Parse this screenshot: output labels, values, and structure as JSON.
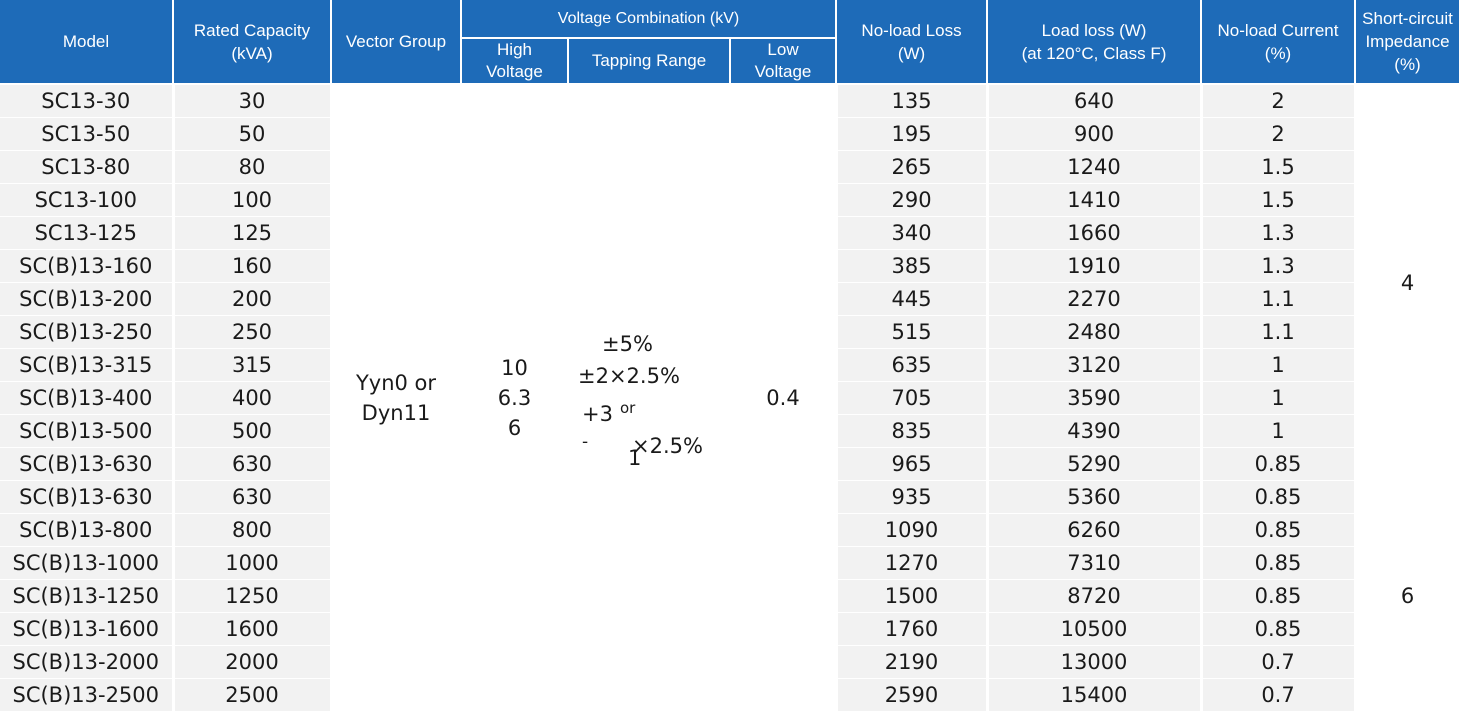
{
  "colors": {
    "header_bg": "#1e6bb8",
    "header_text": "#ffffff",
    "row_shade": "#f2f2f2"
  },
  "headers": {
    "model": "Model",
    "capacity_l1": "Rated Capacity",
    "capacity_l2": "(kVA)",
    "vector_group": "Vector Group",
    "voltage_combination": "Voltage Combination (kV)",
    "high_voltage_l1": "High",
    "high_voltage_l2": "Voltage",
    "tapping_range": "Tapping Range",
    "low_voltage_l1": "Low",
    "low_voltage_l2": "Voltage",
    "noload_loss_l1": "No-load Loss",
    "noload_loss_l2": "(W)",
    "load_loss_l1": "Load loss (W)",
    "load_loss_l2": "(at 120°C, Class F)",
    "noload_current_l1": "No-load Current",
    "noload_current_l2": "(%)",
    "impedance_l1": "Short-circuit",
    "impedance_l2": "Impedance",
    "impedance_l3": "(%)"
  },
  "merged": {
    "vector_group_l1": "Yyn0 or",
    "vector_group_l2": "Dyn11",
    "high_voltage_1": "10",
    "high_voltage_2": "6.3",
    "high_voltage_3": "6",
    "tapping_1": "±5%",
    "tapping_2": "±2×2.5%",
    "tapping_3": "+3",
    "tapping_or": "or",
    "tapping_minus": "-",
    "tapping_1b": "1",
    "tapping_x": "×2.5%",
    "low_voltage": "0.4",
    "impedance_small": "4",
    "impedance_large": "6"
  },
  "rows": [
    {
      "model": "SC13-30",
      "capacity": "30",
      "noload_loss": "135",
      "load_loss": "640",
      "noload_current": "2"
    },
    {
      "model": "SC13-50",
      "capacity": "50",
      "noload_loss": "195",
      "load_loss": "900",
      "noload_current": "2"
    },
    {
      "model": "SC13-80",
      "capacity": "80",
      "noload_loss": "265",
      "load_loss": "1240",
      "noload_current": "1.5"
    },
    {
      "model": "SC13-100",
      "capacity": "100",
      "noload_loss": "290",
      "load_loss": "1410",
      "noload_current": "1.5"
    },
    {
      "model": "SC13-125",
      "capacity": "125",
      "noload_loss": "340",
      "load_loss": "1660",
      "noload_current": "1.3"
    },
    {
      "model": "SC(B)13-160",
      "capacity": "160",
      "noload_loss": "385",
      "load_loss": "1910",
      "noload_current": "1.3"
    },
    {
      "model": "SC(B)13-200",
      "capacity": "200",
      "noload_loss": "445",
      "load_loss": "2270",
      "noload_current": "1.1"
    },
    {
      "model": "SC(B)13-250",
      "capacity": "250",
      "noload_loss": "515",
      "load_loss": "2480",
      "noload_current": "1.1"
    },
    {
      "model": "SC(B)13-315",
      "capacity": "315",
      "noload_loss": "635",
      "load_loss": "3120",
      "noload_current": "1"
    },
    {
      "model": "SC(B)13-400",
      "capacity": "400",
      "noload_loss": "705",
      "load_loss": "3590",
      "noload_current": "1"
    },
    {
      "model": "SC(B)13-500",
      "capacity": "500",
      "noload_loss": "835",
      "load_loss": "4390",
      "noload_current": "1"
    },
    {
      "model": "SC(B)13-630",
      "capacity": "630",
      "noload_loss": "965",
      "load_loss": "5290",
      "noload_current": "0.85"
    },
    {
      "model": "SC(B)13-630",
      "capacity": "630",
      "noload_loss": "935",
      "load_loss": "5360",
      "noload_current": "0.85"
    },
    {
      "model": "SC(B)13-800",
      "capacity": "800",
      "noload_loss": "1090",
      "load_loss": "6260",
      "noload_current": "0.85"
    },
    {
      "model": "SC(B)13-1000",
      "capacity": "1000",
      "noload_loss": "1270",
      "load_loss": "7310",
      "noload_current": "0.85"
    },
    {
      "model": "SC(B)13-1250",
      "capacity": "1250",
      "noload_loss": "1500",
      "load_loss": "8720",
      "noload_current": "0.85"
    },
    {
      "model": "SC(B)13-1600",
      "capacity": "1600",
      "noload_loss": "1760",
      "load_loss": "10500",
      "noload_current": "0.85"
    },
    {
      "model": "SC(B)13-2000",
      "capacity": "2000",
      "noload_loss": "2190",
      "load_loss": "13000",
      "noload_current": "0.7"
    },
    {
      "model": "SC(B)13-2500",
      "capacity": "2500",
      "noload_loss": "2590",
      "load_loss": "15400",
      "noload_current": "0.7"
    }
  ]
}
